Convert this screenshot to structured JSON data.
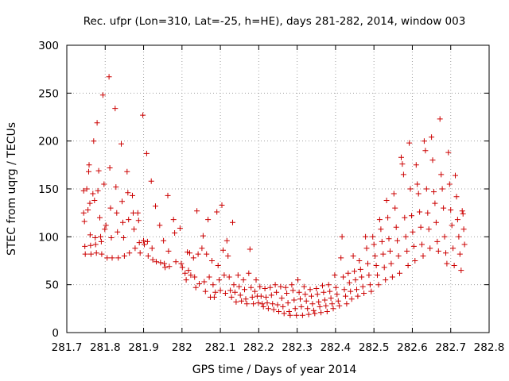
{
  "chart_data": {
    "type": "scatter",
    "title": "Rec. ufpr (Lon=310, Lat=-25, h=HE), days 281-282, 2014, window 003",
    "xlabel": "GPS time / Days of year 2014",
    "ylabel": "STEC from uqrg / TECUs",
    "xlim": [
      281.7,
      282.8
    ],
    "ylim": [
      0,
      300
    ],
    "xticks": [
      "281.7",
      "281.8",
      "281.9",
      "282",
      "282.1",
      "282.2",
      "282.3",
      "282.4",
      "282.5",
      "282.6",
      "282.7",
      "282.8"
    ],
    "yticks": [
      "0",
      "50",
      "100",
      "150",
      "200",
      "250",
      "300"
    ],
    "grid": true,
    "marker": "plus",
    "color": "#cc0000",
    "points": [
      [
        281.744,
        148
      ],
      [
        281.744,
        125
      ],
      [
        281.746,
        116
      ],
      [
        281.747,
        90
      ],
      [
        281.748,
        82
      ],
      [
        281.752,
        150
      ],
      [
        281.755,
        128
      ],
      [
        281.757,
        168
      ],
      [
        281.758,
        175
      ],
      [
        281.76,
        135
      ],
      [
        281.761,
        102
      ],
      [
        281.762,
        91
      ],
      [
        281.763,
        82
      ],
      [
        281.768,
        145
      ],
      [
        281.77,
        200
      ],
      [
        281.772,
        138
      ],
      [
        281.774,
        99
      ],
      [
        281.775,
        92
      ],
      [
        281.777,
        83
      ],
      [
        281.779,
        219
      ],
      [
        281.781,
        148
      ],
      [
        281.783,
        169
      ],
      [
        281.786,
        120
      ],
      [
        281.788,
        100
      ],
      [
        281.79,
        95
      ],
      [
        281.791,
        82
      ],
      [
        281.794,
        248
      ],
      [
        281.797,
        155
      ],
      [
        281.799,
        108
      ],
      [
        281.802,
        112
      ],
      [
        281.805,
        78
      ],
      [
        281.81,
        267
      ],
      [
        281.812,
        172
      ],
      [
        281.814,
        130
      ],
      [
        281.816,
        99
      ],
      [
        281.818,
        78
      ],
      [
        281.826,
        234
      ],
      [
        281.828,
        152
      ],
      [
        281.83,
        125
      ],
      [
        281.832,
        105
      ],
      [
        281.834,
        78
      ],
      [
        281.842,
        197
      ],
      [
        281.844,
        137
      ],
      [
        281.846,
        115
      ],
      [
        281.848,
        99
      ],
      [
        281.85,
        80
      ],
      [
        281.857,
        168
      ],
      [
        281.859,
        146
      ],
      [
        281.861,
        118
      ],
      [
        281.863,
        83
      ],
      [
        281.871,
        143
      ],
      [
        281.873,
        125
      ],
      [
        281.875,
        108
      ],
      [
        281.878,
        88
      ],
      [
        281.885,
        125
      ],
      [
        281.887,
        117
      ],
      [
        281.889,
        94
      ],
      [
        281.891,
        83
      ],
      [
        281.898,
        227
      ],
      [
        281.9,
        96
      ],
      [
        281.902,
        92
      ],
      [
        281.908,
        187
      ],
      [
        281.91,
        95
      ],
      [
        281.912,
        80
      ],
      [
        281.92,
        158
      ],
      [
        281.922,
        88
      ],
      [
        281.924,
        76
      ],
      [
        281.931,
        132
      ],
      [
        281.933,
        74
      ],
      [
        281.942,
        112
      ],
      [
        281.944,
        73
      ],
      [
        281.952,
        96
      ],
      [
        281.954,
        72
      ],
      [
        281.956,
        68
      ],
      [
        281.963,
        143
      ],
      [
        281.965,
        85
      ],
      [
        281.967,
        69
      ],
      [
        281.978,
        118
      ],
      [
        281.981,
        104
      ],
      [
        281.984,
        74
      ],
      [
        281.995,
        109
      ],
      [
        281.998,
        72
      ],
      [
        282.001,
        68
      ],
      [
        282.008,
        62
      ],
      [
        282.011,
        55
      ],
      [
        282.014,
        84
      ],
      [
        282.017,
        65
      ],
      [
        282.02,
        83
      ],
      [
        282.023,
        60
      ],
      [
        282.03,
        78
      ],
      [
        282.033,
        58
      ],
      [
        282.036,
        47
      ],
      [
        282.039,
        127
      ],
      [
        282.042,
        82
      ],
      [
        282.045,
        51
      ],
      [
        282.052,
        88
      ],
      [
        282.055,
        101
      ],
      [
        282.058,
        53
      ],
      [
        282.061,
        43
      ],
      [
        282.064,
        82
      ],
      [
        282.068,
        118
      ],
      [
        282.071,
        58
      ],
      [
        282.074,
        37
      ],
      [
        282.078,
        75
      ],
      [
        282.081,
        50
      ],
      [
        282.084,
        37
      ],
      [
        282.087,
        42
      ],
      [
        282.091,
        126
      ],
      [
        282.094,
        70
      ],
      [
        282.097,
        55
      ],
      [
        282.1,
        44
      ],
      [
        282.104,
        133
      ],
      [
        282.107,
        86
      ],
      [
        282.11,
        60
      ],
      [
        282.113,
        41
      ],
      [
        282.117,
        96
      ],
      [
        282.12,
        80
      ],
      [
        282.123,
        58
      ],
      [
        282.126,
        44
      ],
      [
        282.129,
        37
      ],
      [
        282.132,
        115
      ],
      [
        282.135,
        50
      ],
      [
        282.138,
        42
      ],
      [
        282.141,
        32
      ],
      [
        282.146,
        60
      ],
      [
        282.149,
        48
      ],
      [
        282.152,
        39
      ],
      [
        282.155,
        33
      ],
      [
        282.16,
        55
      ],
      [
        282.163,
        45
      ],
      [
        282.166,
        35
      ],
      [
        282.169,
        30
      ],
      [
        282.174,
        62
      ],
      [
        282.177,
        87
      ],
      [
        282.18,
        47
      ],
      [
        282.183,
        37
      ],
      [
        282.186,
        30
      ],
      [
        282.19,
        43
      ],
      [
        282.193,
        55
      ],
      [
        282.196,
        38
      ],
      [
        282.199,
        31
      ],
      [
        282.203,
        48
      ],
      [
        282.206,
        38
      ],
      [
        282.209,
        30
      ],
      [
        282.212,
        27
      ],
      [
        282.216,
        46
      ],
      [
        282.219,
        37
      ],
      [
        282.222,
        31
      ],
      [
        282.225,
        25
      ],
      [
        282.23,
        47
      ],
      [
        282.233,
        39
      ],
      [
        282.236,
        30
      ],
      [
        282.239,
        24
      ],
      [
        282.243,
        50
      ],
      [
        282.246,
        42
      ],
      [
        282.249,
        29
      ],
      [
        282.252,
        22
      ],
      [
        282.257,
        48
      ],
      [
        282.26,
        36
      ],
      [
        282.263,
        27
      ],
      [
        282.266,
        20
      ],
      [
        282.27,
        47
      ],
      [
        282.273,
        41
      ],
      [
        282.276,
        31
      ],
      [
        282.279,
        22
      ],
      [
        282.282,
        18
      ],
      [
        282.286,
        50
      ],
      [
        282.289,
        44
      ],
      [
        282.292,
        34
      ],
      [
        282.295,
        25
      ],
      [
        282.298,
        18
      ],
      [
        282.302,
        55
      ],
      [
        282.305,
        42
      ],
      [
        282.308,
        35
      ],
      [
        282.311,
        27
      ],
      [
        282.314,
        18
      ],
      [
        282.318,
        48
      ],
      [
        282.321,
        40
      ],
      [
        282.324,
        33
      ],
      [
        282.327,
        25
      ],
      [
        282.33,
        19
      ],
      [
        282.334,
        45
      ],
      [
        282.337,
        38
      ],
      [
        282.34,
        30
      ],
      [
        282.343,
        23
      ],
      [
        282.346,
        20
      ],
      [
        282.35,
        46
      ],
      [
        282.353,
        40
      ],
      [
        282.356,
        32
      ],
      [
        282.359,
        27
      ],
      [
        282.362,
        21
      ],
      [
        282.366,
        49
      ],
      [
        282.369,
        42
      ],
      [
        282.372,
        34
      ],
      [
        282.375,
        28
      ],
      [
        282.378,
        22
      ],
      [
        282.382,
        50
      ],
      [
        282.385,
        43
      ],
      [
        282.388,
        36
      ],
      [
        282.391,
        30
      ],
      [
        282.394,
        25
      ],
      [
        282.398,
        60
      ],
      [
        282.401,
        47
      ],
      [
        282.404,
        40
      ],
      [
        282.407,
        33
      ],
      [
        282.41,
        28
      ],
      [
        282.414,
        78
      ],
      [
        282.417,
        100
      ],
      [
        282.42,
        58
      ],
      [
        282.423,
        45
      ],
      [
        282.426,
        38
      ],
      [
        282.429,
        30
      ],
      [
        282.433,
        62
      ],
      [
        282.436,
        52
      ],
      [
        282.439,
        43
      ],
      [
        282.442,
        35
      ],
      [
        282.446,
        80
      ],
      [
        282.449,
        64
      ],
      [
        282.452,
        55
      ],
      [
        282.455,
        45
      ],
      [
        282.458,
        38
      ],
      [
        282.462,
        75
      ],
      [
        282.465,
        66
      ],
      [
        282.468,
        58
      ],
      [
        282.471,
        48
      ],
      [
        282.474,
        41
      ],
      [
        282.478,
        100
      ],
      [
        282.481,
        88
      ],
      [
        282.484,
        72
      ],
      [
        282.487,
        60
      ],
      [
        282.49,
        50
      ],
      [
        282.493,
        43
      ],
      [
        282.497,
        100
      ],
      [
        282.5,
        92
      ],
      [
        282.503,
        80
      ],
      [
        282.506,
        70
      ],
      [
        282.509,
        60
      ],
      [
        282.512,
        50
      ],
      [
        282.515,
        118
      ],
      [
        282.518,
        108
      ],
      [
        282.521,
        95
      ],
      [
        282.524,
        82
      ],
      [
        282.527,
        68
      ],
      [
        282.53,
        55
      ],
      [
        282.533,
        138
      ],
      [
        282.536,
        120
      ],
      [
        282.539,
        98
      ],
      [
        282.542,
        85
      ],
      [
        282.545,
        72
      ],
      [
        282.548,
        58
      ],
      [
        282.552,
        145
      ],
      [
        282.555,
        130
      ],
      [
        282.558,
        110
      ],
      [
        282.561,
        96
      ],
      [
        282.564,
        80
      ],
      [
        282.567,
        62
      ],
      [
        282.571,
        183
      ],
      [
        282.574,
        176
      ],
      [
        282.577,
        165
      ],
      [
        282.58,
        120
      ],
      [
        282.583,
        100
      ],
      [
        282.586,
        85
      ],
      [
        282.589,
        70
      ],
      [
        282.592,
        198
      ],
      [
        282.595,
        150
      ],
      [
        282.598,
        122
      ],
      [
        282.601,
        105
      ],
      [
        282.604,
        90
      ],
      [
        282.607,
        75
      ],
      [
        282.61,
        175
      ],
      [
        282.613,
        155
      ],
      [
        282.616,
        145
      ],
      [
        282.619,
        126
      ],
      [
        282.622,
        110
      ],
      [
        282.625,
        92
      ],
      [
        282.628,
        80
      ],
      [
        282.631,
        200
      ],
      [
        282.634,
        190
      ],
      [
        282.637,
        150
      ],
      [
        282.64,
        125
      ],
      [
        282.643,
        108
      ],
      [
        282.646,
        88
      ],
      [
        282.65,
        204
      ],
      [
        282.653,
        180
      ],
      [
        282.656,
        147
      ],
      [
        282.659,
        135
      ],
      [
        282.662,
        115
      ],
      [
        282.665,
        95
      ],
      [
        282.668,
        85
      ],
      [
        282.672,
        223
      ],
      [
        282.675,
        165
      ],
      [
        282.678,
        150
      ],
      [
        282.681,
        130
      ],
      [
        282.684,
        100
      ],
      [
        282.687,
        83
      ],
      [
        282.69,
        72
      ],
      [
        282.694,
        188
      ],
      [
        282.697,
        155
      ],
      [
        282.7,
        128
      ],
      [
        282.703,
        112
      ],
      [
        282.706,
        88
      ],
      [
        282.709,
        70
      ],
      [
        282.712,
        164
      ],
      [
        282.715,
        142
      ],
      [
        282.718,
        118
      ],
      [
        282.721,
        100
      ],
      [
        282.724,
        82
      ],
      [
        282.727,
        65
      ],
      [
        282.73,
        127
      ],
      [
        282.732,
        124
      ],
      [
        282.734,
        108
      ],
      [
        282.736,
        92
      ]
    ]
  }
}
